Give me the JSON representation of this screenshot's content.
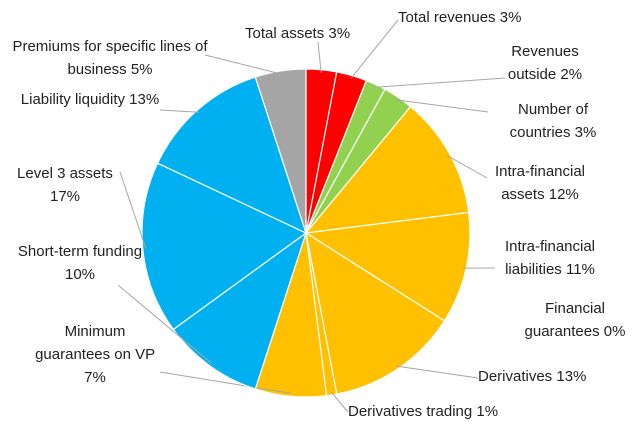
{
  "chart_data": {
    "type": "pie",
    "categories": [
      "Total assets",
      "Total revenues",
      "Revenues outside",
      "Number of countries",
      "Intra-financial assets",
      "Intra-financial liabilities",
      "Financial guarantees",
      "Derivatives",
      "Derivatives trading",
      "Minimum guarantees on VP",
      "Short-term funding",
      "Level 3 assets",
      "Liability liquidity",
      "Premiums for specific lines of business"
    ],
    "values": [
      3,
      3,
      2,
      3,
      12,
      11,
      0,
      13,
      1,
      7,
      10,
      17,
      13,
      5
    ],
    "value_labels": [
      "3%",
      "3%",
      "2%",
      "3%",
      "12%",
      "11%",
      "0%",
      "13%",
      "1%",
      "7%",
      "10%",
      "17%",
      "13%",
      "5%"
    ],
    "colors": [
      "#ff0000",
      "#ff0000",
      "#92d050",
      "#92d050",
      "#ffc000",
      "#ffc000",
      "#ffc000",
      "#ffc000",
      "#ffc000",
      "#ffc000",
      "#00b0f0",
      "#00b0f0",
      "#00b0f0",
      "#a5a5a5"
    ]
  }
}
